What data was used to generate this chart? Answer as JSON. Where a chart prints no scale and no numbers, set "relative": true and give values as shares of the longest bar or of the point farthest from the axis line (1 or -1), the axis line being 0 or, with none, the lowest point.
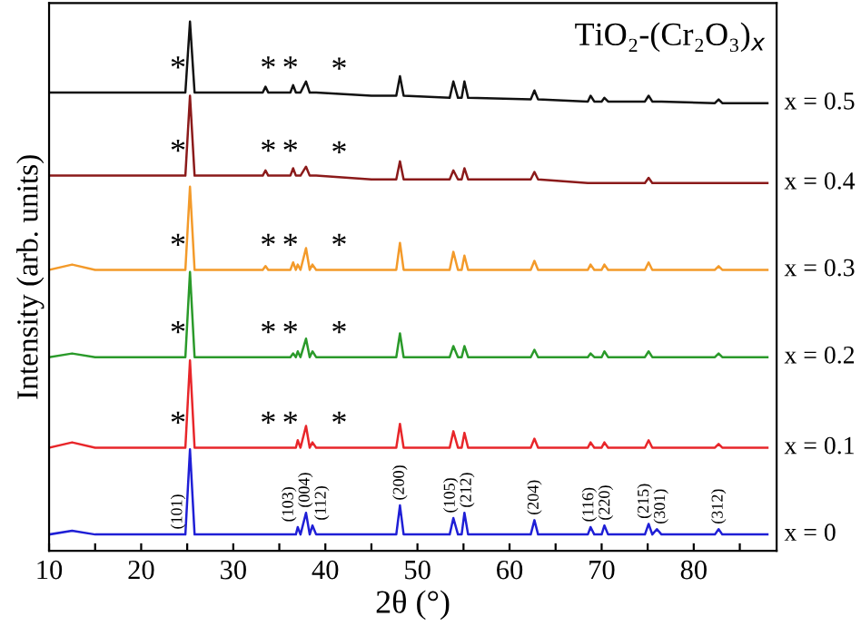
{
  "chart_data": {
    "type": "line",
    "relative": true,
    "title": "TiO₂-(Cr₂O₃)$_{x}$",
    "xlabel": "2θ (°)",
    "ylabel": "Intensity (arb. units)",
    "legend": false,
    "grid": false,
    "marker": "none",
    "line_style": "solid",
    "x": [
      10,
      12.5,
      15,
      20,
      24.8,
      25.3,
      25.8,
      30,
      33.2,
      33.5,
      33.8,
      36.2,
      36.5,
      36.8,
      37.0,
      37.3,
      37.9,
      38.3,
      38.6,
      39.0,
      45,
      47.7,
      48.1,
      48.5,
      53.5,
      53.9,
      54.4,
      54.8,
      55.1,
      55.5,
      62.3,
      62.7,
      63.1,
      68.5,
      68.8,
      69.2,
      70.0,
      70.3,
      70.7,
      74.7,
      75.1,
      75.5,
      76.0,
      76.5,
      82.3,
      82.7,
      83.1,
      88
    ],
    "xlim": [
      10,
      89
    ],
    "xticks": [
      10,
      {
        "value": 15,
        "label": null
      },
      20,
      {
        "value": 25,
        "label": null
      },
      30,
      {
        "value": 35,
        "label": null
      },
      40,
      {
        "value": 45,
        "label": null
      },
      50,
      {
        "value": 55,
        "label": null
      },
      60,
      {
        "value": 65,
        "label": null
      },
      70,
      {
        "value": 75,
        "label": null
      },
      80,
      {
        "value": 85,
        "label": null
      }
    ],
    "series": [
      {
        "name": "x = 0",
        "color": "#1f1fd6",
        "values": [
          0.031,
          0.038,
          0.031,
          0.031,
          0.031,
          0.192,
          0.031,
          0.031,
          0.031,
          0.031,
          0.031,
          0.031,
          0.031,
          0.031,
          0.045,
          0.031,
          0.072,
          0.031,
          0.048,
          0.031,
          0.031,
          0.031,
          0.086,
          0.031,
          0.031,
          0.062,
          0.031,
          0.031,
          0.072,
          0.031,
          0.031,
          0.058,
          0.031,
          0.031,
          0.045,
          0.031,
          0.031,
          0.048,
          0.031,
          0.031,
          0.051,
          0.031,
          0.041,
          0.031,
          0.031,
          0.041,
          0.031,
          0.031
        ]
      },
      {
        "name": "x = 0.1",
        "color": "#e8262a",
        "values": [
          0.195,
          0.205,
          0.195,
          0.195,
          0.195,
          0.36,
          0.195,
          0.195,
          0.195,
          0.195,
          0.195,
          0.195,
          0.195,
          0.195,
          0.209,
          0.195,
          0.236,
          0.195,
          0.205,
          0.195,
          0.195,
          0.195,
          0.24,
          0.195,
          0.195,
          0.226,
          0.195,
          0.195,
          0.223,
          0.195,
          0.195,
          0.212,
          0.195,
          0.195,
          0.205,
          0.195,
          0.195,
          0.205,
          0.195,
          0.195,
          0.209,
          0.195,
          0.195,
          0.195,
          0.195,
          0.202,
          0.195,
          0.195
        ]
      },
      {
        "name": "x = 0.2",
        "color": "#2a9a2a",
        "values": [
          0.366,
          0.373,
          0.366,
          0.366,
          0.366,
          0.527,
          0.366,
          0.366,
          0.366,
          0.366,
          0.366,
          0.366,
          0.373,
          0.366,
          0.377,
          0.366,
          0.401,
          0.366,
          0.377,
          0.366,
          0.366,
          0.366,
          0.411,
          0.366,
          0.366,
          0.387,
          0.366,
          0.366,
          0.387,
          0.366,
          0.366,
          0.38,
          0.366,
          0.366,
          0.373,
          0.366,
          0.366,
          0.377,
          0.366,
          0.366,
          0.377,
          0.366,
          0.366,
          0.366,
          0.366,
          0.373,
          0.366,
          0.366
        ]
      },
      {
        "name": "x = 0.3",
        "color": "#f39a2a",
        "values": [
          0.531,
          0.541,
          0.531,
          0.531,
          0.531,
          0.688,
          0.531,
          0.531,
          0.531,
          0.538,
          0.531,
          0.531,
          0.545,
          0.531,
          0.541,
          0.531,
          0.572,
          0.531,
          0.541,
          0.531,
          0.531,
          0.531,
          0.582,
          0.531,
          0.531,
          0.565,
          0.531,
          0.531,
          0.558,
          0.531,
          0.531,
          0.548,
          0.531,
          0.531,
          0.541,
          0.531,
          0.531,
          0.541,
          0.531,
          0.531,
          0.545,
          0.531,
          0.531,
          0.531,
          0.531,
          0.538,
          0.531,
          0.531
        ]
      },
      {
        "name": "x = 0.4",
        "color": "#8b1a1a",
        "values": [
          0.709,
          0.709,
          0.709,
          0.709,
          0.709,
          0.86,
          0.709,
          0.709,
          0.709,
          0.719,
          0.709,
          0.709,
          0.723,
          0.709,
          0.709,
          0.709,
          0.726,
          0.709,
          0.709,
          0.709,
          0.702,
          0.702,
          0.736,
          0.702,
          0.702,
          0.719,
          0.702,
          0.702,
          0.723,
          0.702,
          0.702,
          0.716,
          0.702,
          0.695,
          0.695,
          0.695,
          0.695,
          0.695,
          0.695,
          0.695,
          0.705,
          0.695,
          0.695,
          0.695,
          0.695,
          0.695,
          0.695,
          0.695
        ]
      },
      {
        "name": "x = 0.5",
        "color": "#111111",
        "values": [
          0.866,
          0.866,
          0.866,
          0.866,
          0.866,
          1.0,
          0.866,
          0.866,
          0.866,
          0.877,
          0.866,
          0.866,
          0.88,
          0.866,
          0.866,
          0.866,
          0.887,
          0.866,
          0.866,
          0.866,
          0.86,
          0.86,
          0.897,
          0.86,
          0.856,
          0.887,
          0.856,
          0.856,
          0.887,
          0.856,
          0.853,
          0.87,
          0.853,
          0.849,
          0.86,
          0.849,
          0.849,
          0.856,
          0.849,
          0.849,
          0.86,
          0.849,
          0.849,
          0.849,
          0.846,
          0.853,
          0.846,
          0.846
        ]
      }
    ],
    "annotations": [
      {
        "text": "*",
        "x": 24.0,
        "y": 0.195
      },
      {
        "text": "*",
        "x": 33.8,
        "y": 0.195
      },
      {
        "text": "*",
        "x": 36.2,
        "y": 0.195
      },
      {
        "text": "*",
        "x": 41.5,
        "y": 0.195
      },
      {
        "text": "*",
        "x": 24.0,
        "y": 0.366
      },
      {
        "text": "*",
        "x": 33.8,
        "y": 0.366
      },
      {
        "text": "*",
        "x": 36.2,
        "y": 0.366
      },
      {
        "text": "*",
        "x": 41.5,
        "y": 0.366
      },
      {
        "text": "*",
        "x": 24.0,
        "y": 0.531
      },
      {
        "text": "*",
        "x": 33.8,
        "y": 0.531
      },
      {
        "text": "*",
        "x": 36.2,
        "y": 0.531
      },
      {
        "text": "*",
        "x": 41.5,
        "y": 0.531
      },
      {
        "text": "*",
        "x": 24.0,
        "y": 0.709
      },
      {
        "text": "*",
        "x": 33.8,
        "y": 0.709
      },
      {
        "text": "*",
        "x": 36.2,
        "y": 0.709
      },
      {
        "text": "*",
        "x": 41.5,
        "y": 0.706
      },
      {
        "text": "*",
        "x": 24.0,
        "y": 0.866
      },
      {
        "text": "*",
        "x": 33.8,
        "y": 0.866
      },
      {
        "text": "*",
        "x": 36.2,
        "y": 0.866
      },
      {
        "text": "*",
        "x": 41.5,
        "y": 0.864
      },
      {
        "text": "(101)",
        "x": 24.0,
        "y": 0.031
      },
      {
        "text": "(103)",
        "x": 37.0,
        "y": 0.045
      },
      {
        "text": "(004)",
        "x": 37.9,
        "y": 0.072
      },
      {
        "text": "(112)",
        "x": 38.6,
        "y": 0.048
      },
      {
        "text": "(200)",
        "x": 48.1,
        "y": 0.086
      },
      {
        "text": "(105)",
        "x": 53.9,
        "y": 0.062
      },
      {
        "text": "(212)",
        "x": 55.1,
        "y": 0.072
      },
      {
        "text": "(204)",
        "x": 62.7,
        "y": 0.058
      },
      {
        "text": "(116)",
        "x": 68.8,
        "y": 0.045
      },
      {
        "text": "(220)",
        "x": 70.3,
        "y": 0.048
      },
      {
        "text": "(215)",
        "x": 75.1,
        "y": 0.051
      },
      {
        "text": "(301)",
        "x": 76.0,
        "y": 0.041
      },
      {
        "text": "(312)",
        "x": 82.7,
        "y": 0.041
      }
    ]
  }
}
